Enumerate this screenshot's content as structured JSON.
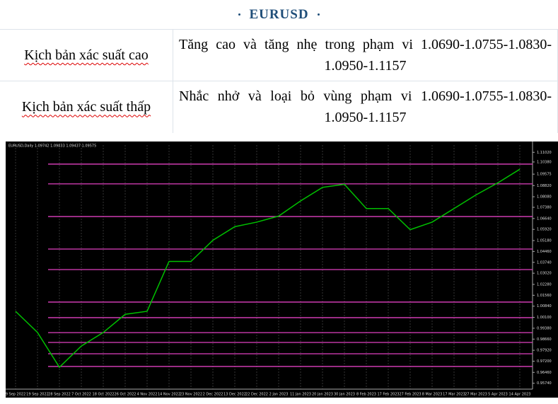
{
  "header": {
    "title": "EURUSD"
  },
  "table": {
    "rows": [
      [
        "Kịch bản xác suất cao",
        "Tăng cao và tăng nhẹ trong phạm vi 1.0690-1.0755-1.0830-1.0950-1.1157"
      ],
      [
        "Kịch bản xác suất thấp",
        "Nhắc nhở và loại bỏ vùng phạm vi 1.0690-1.0755-1.0830-1.0950-1.1157"
      ]
    ]
  },
  "chart_data": {
    "type": "line",
    "title": "EURUSD,Daily 1.09742 1.09833 1.09437 1.09575",
    "categories": [
      "9 Sep 2022",
      "19 Sep 2022",
      "28 Sep 2022",
      "7 Oct 2022",
      "18 Oct 2022",
      "26 Oct 2022",
      "4 Nov 2022",
      "14 Nov 2022",
      "23 Nov 2022",
      "2 Dec 2022",
      "13 Dec 2022",
      "22 Dec 2022",
      "2 Jan 2023",
      "11 Jan 2023",
      "20 Jan 2023",
      "30 Jan 2023",
      "8 Feb 2023",
      "17 Feb 2023",
      "27 Feb 2023",
      "8 Mar 2023",
      "17 Mar 2023",
      "27 Mar 2023",
      "5 Apr 2023",
      "14 Apr 2023"
    ],
    "values": [
      1.005,
      0.991,
      0.968,
      0.982,
      0.991,
      1.003,
      1.005,
      1.038,
      1.038,
      1.052,
      1.061,
      1.064,
      1.068,
      1.078,
      1.087,
      1.089,
      1.073,
      1.073,
      1.059,
      1.064,
      1.073,
      1.082,
      1.09,
      1.099
    ],
    "color": "#00c000",
    "ylim": [
      0.9535,
      1.115
    ],
    "yticks": [
      {
        "value": 1.1102,
        "label": "1.11020"
      },
      {
        "value": 1.1038,
        "label": "1.10380"
      },
      {
        "value": 1.09575,
        "label": "1.09575"
      },
      {
        "value": 1.0882,
        "label": "1.08820"
      },
      {
        "value": 1.0808,
        "label": "1.08080"
      },
      {
        "value": 1.0738,
        "label": "1.07380"
      },
      {
        "value": 1.0664,
        "label": "1.06640"
      },
      {
        "value": 1.0592,
        "label": "1.05920"
      },
      {
        "value": 1.0518,
        "label": "1.05180"
      },
      {
        "value": 1.0446,
        "label": "1.04460"
      },
      {
        "value": 1.0374,
        "label": "1.03740"
      },
      {
        "value": 1.0302,
        "label": "1.03020"
      },
      {
        "value": 1.0228,
        "label": "1.02280"
      },
      {
        "value": 1.0156,
        "label": "1.01560"
      },
      {
        "value": 1.0084,
        "label": "1.00840"
      },
      {
        "value": 1.001,
        "label": "1.00100"
      },
      {
        "value": 0.9938,
        "label": "0.99380"
      },
      {
        "value": 0.9866,
        "label": "0.98660"
      },
      {
        "value": 0.9792,
        "label": "0.97920"
      },
      {
        "value": 0.972,
        "label": "0.97200"
      },
      {
        "value": 0.9646,
        "label": "0.96460"
      },
      {
        "value": 0.9574,
        "label": "0.95740"
      }
    ],
    "levels": [
      1.1024,
      1.0893,
      1.0677,
      1.0462,
      1.0326,
      1.0111,
      1.0008,
      0.9909,
      0.9844,
      0.9769,
      0.9685
    ],
    "level_color": "#e040c0",
    "grid": true
  }
}
